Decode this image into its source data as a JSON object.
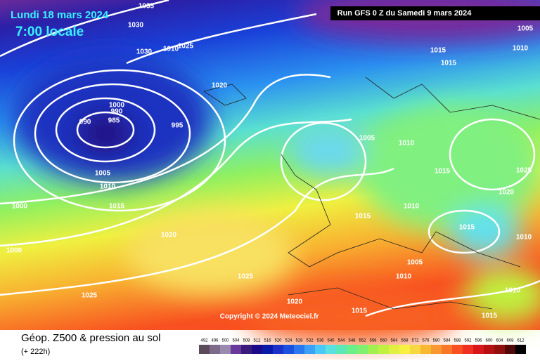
{
  "header": {
    "date": "Lundi 18 mars 2024",
    "time": "7:00 locale",
    "run": "Run GFS 0 Z du Samedi 9 mars 2024"
  },
  "map": {
    "copyright": "Copyright © 2024 Meteociel.fr",
    "isobar_labels": [
      1035,
      1030,
      1030,
      1010,
      1025,
      1020,
      1000,
      990,
      985,
      990,
      995,
      1005,
      1010,
      1015,
      1000,
      1020,
      1000,
      1025,
      1025,
      1020,
      1015,
      1015,
      1010,
      1005,
      1010,
      1015,
      1020,
      1025,
      1015,
      1010,
      1005,
      1010,
      1010,
      1015,
      1015,
      1015,
      1005,
      1010
    ]
  },
  "footer": {
    "title": "Géop. Z500 & pression au sol",
    "lead": "(+ 222h)"
  },
  "scale": {
    "values": [
      492,
      496,
      500,
      504,
      508,
      512,
      516,
      520,
      524,
      528,
      532,
      536,
      540,
      544,
      548,
      552,
      556,
      560,
      564,
      568,
      572,
      576,
      580,
      584,
      588,
      592,
      596,
      600,
      604,
      608,
      612
    ],
    "colors": [
      "#5a4a5a",
      "#7e6a8a",
      "#9b8ab0",
      "#6a3a9a",
      "#3a1a7a",
      "#1a0a8a",
      "#0a1aa8",
      "#1a30c8",
      "#1a50e0",
      "#2a78f0",
      "#3aa0f8",
      "#4ac8f8",
      "#5ae0e0",
      "#5ae8b8",
      "#6af08a",
      "#80f070",
      "#a0f050",
      "#c0f040",
      "#e0f040",
      "#f8f040",
      "#f8d840",
      "#f8b830",
      "#f89830",
      "#f87828",
      "#f85020",
      "#f03020",
      "#d81818",
      "#b81010",
      "#901010",
      "#500808",
      "#000000"
    ]
  }
}
